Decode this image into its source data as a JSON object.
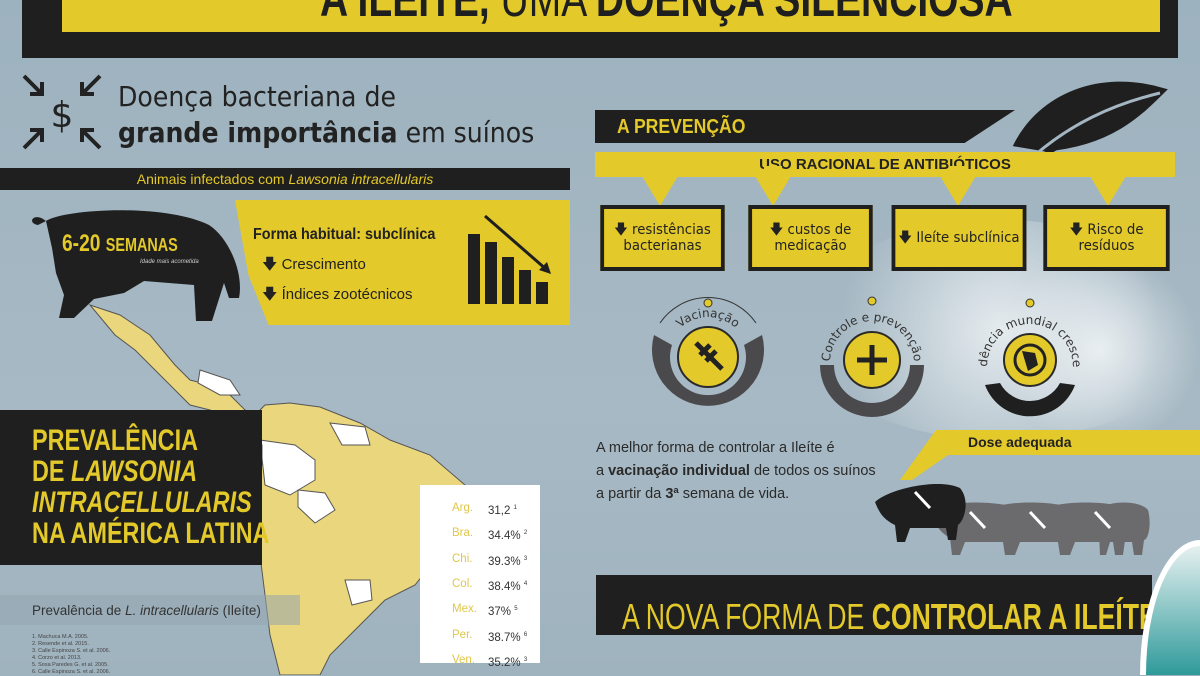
{
  "title": {
    "part1": "A ILEÍTE,",
    "part2": " UMA ",
    "part3": "DOENÇA SILENCIOSA"
  },
  "intro": {
    "line1": "Doença bacteriana de",
    "line2_bold": "grande importância",
    "line2_rest": " em suínos",
    "icon": "dollar-compress-icon"
  },
  "infected_bar": {
    "prefix": "Animais infectados com ",
    "italic": "Lawsonia intracellularis"
  },
  "age": {
    "range": "6-20",
    "unit": "SEMANAS",
    "note": "Idade mais acometida"
  },
  "form": {
    "title": "Forma habitual: subclínica",
    "items": [
      "Crescimento",
      "Índices zootécnicos"
    ]
  },
  "prevalence_box": {
    "line1": "PREVALÊNCIA",
    "line2a": "DE ",
    "line2b": "LAWSONIA",
    "line3": "INTRACELLULARIS",
    "line4": "NA AMÉRICA LATINA"
  },
  "map_caption": {
    "prefix": "Prevalência de ",
    "italic": "L. intracellularis",
    "suffix": " (Ileíte)"
  },
  "references": [
    "1. Machuca M.A. 2005.",
    "2. Resende et al. 2015.",
    "3. Calle Espinoza S. et al. 2006.",
    "4. Corzo et al. 2013.",
    "5. Sosa Paredes G. et al. 2005.",
    "6. Calle Espinoza S. et al. 2006."
  ],
  "prevalence_table": [
    {
      "country": "Arg.",
      "value": "31,2",
      "ref": "1"
    },
    {
      "country": "Bra.",
      "value": "34.4%",
      "ref": "2"
    },
    {
      "country": "Chi.",
      "value": "39.3%",
      "ref": "3"
    },
    {
      "country": "Col.",
      "value": "38.4%",
      "ref": "4"
    },
    {
      "country": "Mex.",
      "value": "37%",
      "ref": "5"
    },
    {
      "country": "Per.",
      "value": "38.7%",
      "ref": "6"
    },
    {
      "country": "Ven.",
      "value": "35.2%",
      "ref": "3"
    }
  ],
  "prevention": {
    "title": "A PREVENÇÃO",
    "subtitle": "USO RACIONAL DE ANTIBIÓTICOS",
    "boxes": [
      {
        "l1": "resistências",
        "l2": "bacterianas"
      },
      {
        "l1": "custos de",
        "l2": "medicação"
      },
      {
        "l1": "Ileíte subclínica",
        "l2": ""
      },
      {
        "l1": "Risco de resíduos",
        "l2": ""
      }
    ]
  },
  "circles": [
    {
      "label": "Vacinação",
      "icon": "syringe-icon"
    },
    {
      "label": "Controle e prevenção",
      "icon": "plus-icon"
    },
    {
      "label": "Tendência mundial crescente",
      "icon": "globe-icon"
    }
  ],
  "paragraph": {
    "l1": "A melhor forma de controlar a Ileíte é",
    "l2a": "a ",
    "l2b": "vacinação individual",
    "l2c": " de todos os suínos",
    "l3a": "a partir da ",
    "l3b": "3ª",
    "l3c": " semana de vida."
  },
  "dose": "Dose adequada",
  "bottom": {
    "light": "A NOVA FORMA DE ",
    "bold": "CONTROLAR A ILEÍTE"
  },
  "colors": {
    "yellow": "#e3c92a",
    "black": "#1f1f1f",
    "map_yellow": "#ead67c",
    "background": "#a3b6c2"
  }
}
